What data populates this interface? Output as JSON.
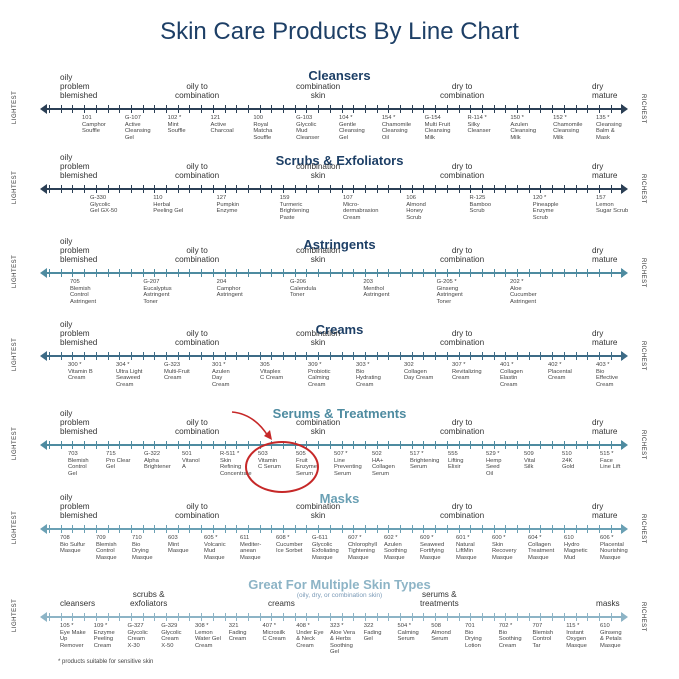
{
  "title": "Skin Care Products By Line Chart",
  "side_labels": {
    "left": "LIGHTEST",
    "right": "RICHEST"
  },
  "footnote": "* products suitable for sensitive skin",
  "colors": {
    "title": "#1d3f66",
    "line_dark": "#2b3f55",
    "line_mid": "#4e8ba0",
    "line_light": "#8db4c6",
    "highlight": "#c62828"
  },
  "sections": [
    {
      "title": "Cleansers",
      "zones": [
        "oily\nproblem\nblemished",
        "oily to\ncombination",
        "combination\nskin",
        "dry to\ncombination",
        "dry\nmature"
      ],
      "products": [
        "101\nCamphor\nSouffle",
        "G-107\nActive\nCleansing\nGel",
        "102 *\nMint\nSouffle",
        "121\nActive\nCharcoal",
        "100\nRoyal\nMatcha\nSouffle",
        "G-103\nGlycolic\nMud\nCleanser",
        "104 *\nGentle\nCleansing\nGel",
        "154 *\nChamomile\nCleansing\nOil",
        "G-154\nMulti Fruit\nCleansing\nMilk",
        "R-114 *\nSilky\nCleanser",
        "150 *\nAzulen\nCleansing\nMilk",
        "152 *\nChamomile\nCleansing\nMilk",
        "135 *\nCleansing\nBalm &\nMask"
      ]
    },
    {
      "title": "Scrubs & Exfoliators",
      "zones": [
        "oily\nproblem\nblemished",
        "oily to\ncombination",
        "combination\nskin",
        "dry to\ncombination",
        "dry\nmature"
      ],
      "products": [
        "G-330\nGlycolic\nGel GX-50",
        "110\nHerbal\nPeeling Gel",
        "127\nPumpkin\nEnzyme",
        "159\nTurmeric\nBrightening\nPaste",
        "107\nMicro-\ndermabrasion\nCream",
        "106\nAlmond\nHoney\nScrub",
        "R-125\nBamboo\nScrub",
        "120 *\nPineapple\nEnzyme\nScrub",
        "157\nLemon\nSugar Scrub"
      ]
    },
    {
      "title": "Astringents",
      "zones": [
        "oily\nproblem\nblemished",
        "oily to\ncombination",
        "combination\nskin",
        "dry to\ncombination",
        "dry\nmature"
      ],
      "products": [
        "705\nBlemish\nControl\nAstringent",
        "G-207\nEucalyptus\nAstringent\nToner",
        "204\nCamphor\nAstringent",
        "G-206\nCalendula\nToner",
        "203\nMenthol\nAstringent",
        "G-205 *\nGinseng\nAstringent\nToner",
        "202 *\nAloe\nCucumber\nAstringent"
      ]
    },
    {
      "title": "Creams",
      "zones": [
        "oily\nproblem\nblemished",
        "oily to\ncombination",
        "combination\nskin",
        "dry to\ncombination",
        "dry\nmature"
      ],
      "products": [
        "300 *\nVitamin B\nCream",
        "304 *\nUltra Light\nSeaweed\nCream",
        "G-323\nMulti-Fruit\nCream",
        "301 *\nAzulen\nDay\nCream",
        "305\nVitaplex\nC Cream",
        "309 *\nProbiotic\nCalming\nCream",
        "303 *\nBio\nHydrating\nCream",
        "302\nCollagen\nDay Cream",
        "307 *\nRevitalizing\nCream",
        "401 *\nCollagen\nElastin\nCream",
        "402 *\nPlacental\nCream",
        "403 *\nBio\nEffective\nCream"
      ]
    },
    {
      "title": "Serums & Treatments",
      "zones": [
        "oily\nproblem\nblemished",
        "oily to\ncombination",
        "combination\nskin",
        "dry to\ncombination",
        "dry\nmature"
      ],
      "products": [
        "703\nBlemish\nControl\nGel",
        "715\nPro Clear\nGel",
        "G-322\nAlpha\nBrightener",
        "501\nVitanol\nA",
        "R-511 *\nSkin\nRefining\nConcentrate",
        "503\nVitamin\nC Serum",
        "505\nFruit\nEnzyme\nSerum",
        "507 *\nLine\nPreventing\nSerum",
        "502\nHA+\nCollagen\nSerum",
        "517 *\nBrightening\nSerum",
        "555\nLifting\nElixir",
        "529 *\nHemp\nSeed\nOil",
        "509\nVital\nSilk",
        "510\n24K\nGold",
        "515 *\nFace\nLine Lift"
      ]
    },
    {
      "title": "Masks",
      "zones": [
        "oily\nproblem\nblemished",
        "oily to\ncombination",
        "combination\nskin",
        "dry to\ncombination",
        "dry\nmature"
      ],
      "products": [
        "708\nBio Sulfur\nMasque",
        "709\nBlemish\nControl\nMasque",
        "710\nBio\nDrying\nMasque",
        "603\nMint\nMasque",
        "605 *\nVolcanic\nMud\nMasque",
        "611\nMediter-\nanean\nMasque",
        "608 *\nCucumber\nIce Sorbet",
        "G-611\nGlycolic\nExfoliating\nMasque",
        "607 *\nChlorophyll\nTightening\nMasque",
        "602 *\nAzulen\nSoothing\nMasque",
        "609 *\nSeaweed\nFortifying\nMasque",
        "601 *\nNatural\nLiftMin\nMasque",
        "600 *\nSkin\nRecovery\nMasque",
        "604 *\nCollagen\nTreatment\nMasque",
        "610\nHydro\nMagnetic\nMud",
        "606 *\nPlacental\nNourishing\nMasque"
      ]
    },
    {
      "title": "Great For Multiple Skin Types",
      "subtitle": "(oily, dry, or combination skin)",
      "zones": [
        "cleansers",
        "scrubs &\nexfoliators",
        "creams",
        "serums &\ntreatments",
        "masks"
      ],
      "products": [
        "105 *\nEye Make\nUp\nRemover",
        "109 *\nEnzyme\nPeeling\nCream",
        "G-327\nGlycolic\nCream\nX-30",
        "G-329\nGlycolic\nCream\nX-50",
        "308 *\nLemon\nWater Gel\nCream",
        "321\nFading\nCream",
        "407 *\nMicrosilk\nC Cream",
        "408 *\nUnder Eye\n& Neck\nCream",
        "323 *\nAloe Vera\n& Herbs\nSoothing\nGel",
        "322\nFading\nGel",
        "504 *\nCalming\nSerum",
        "508\nAlmond\nSerum",
        "701\nBio\nDrying\nLotion",
        "702 *\nBio\nSoothing\nCream",
        "707\nBlemish\nControl\nTar",
        "115 *\nInstant\nOxygen\nMasque",
        "610\nGinseng\n& Petals\nMasque"
      ]
    }
  ]
}
